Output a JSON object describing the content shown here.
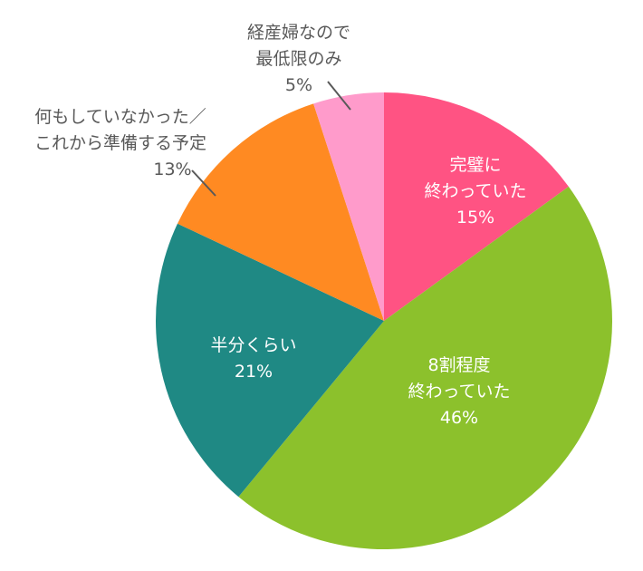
{
  "chart_data": {
    "type": "pie",
    "title": "",
    "start_angle_deg": 0,
    "direction": "clockwise",
    "slices": [
      {
        "label": "完璧に終わっていた",
        "lines": [
          "完璧に",
          "終わっていた"
        ],
        "value": 15,
        "pct_text": "15%",
        "color": "#FF5383",
        "label_pos": "inside"
      },
      {
        "label": "8割程度終わっていた",
        "lines": [
          "8割程度",
          "終わっていた"
        ],
        "value": 46,
        "pct_text": "46%",
        "color": "#8CC12C",
        "label_pos": "inside"
      },
      {
        "label": "半分くらい",
        "lines": [
          "半分くらい"
        ],
        "value": 21,
        "pct_text": "21%",
        "color": "#1F8984",
        "label_pos": "inside"
      },
      {
        "label": "何もしていなかった／これから準備する予定",
        "lines": [
          "何もしていなかった／",
          "これから準備する予定"
        ],
        "value": 13,
        "pct_text": "13%",
        "color": "#FF8A22",
        "label_pos": "outside"
      },
      {
        "label": "経産婦なので最低限のみ",
        "lines": [
          "経産婦なので",
          "最低限のみ"
        ],
        "value": 5,
        "pct_text": "5%",
        "color": "#FF9BCB",
        "label_pos": "outside"
      }
    ],
    "legend": "none"
  },
  "labels": {
    "s0": {
      "l1": "完璧に",
      "l2": "終わっていた",
      "pct": "15%"
    },
    "s1": {
      "l1": "8割程度",
      "l2": "終わっていた",
      "pct": "46%"
    },
    "s2": {
      "l1": "半分くらい",
      "pct": "21%"
    },
    "s3": {
      "l1": "何もしていなかった／",
      "l2": "これから準備する予定",
      "pct": "13%"
    },
    "s4": {
      "l1": "経産婦なので",
      "l2": "最低限のみ",
      "pct": "5%"
    }
  },
  "leader_line_color": "#595959"
}
